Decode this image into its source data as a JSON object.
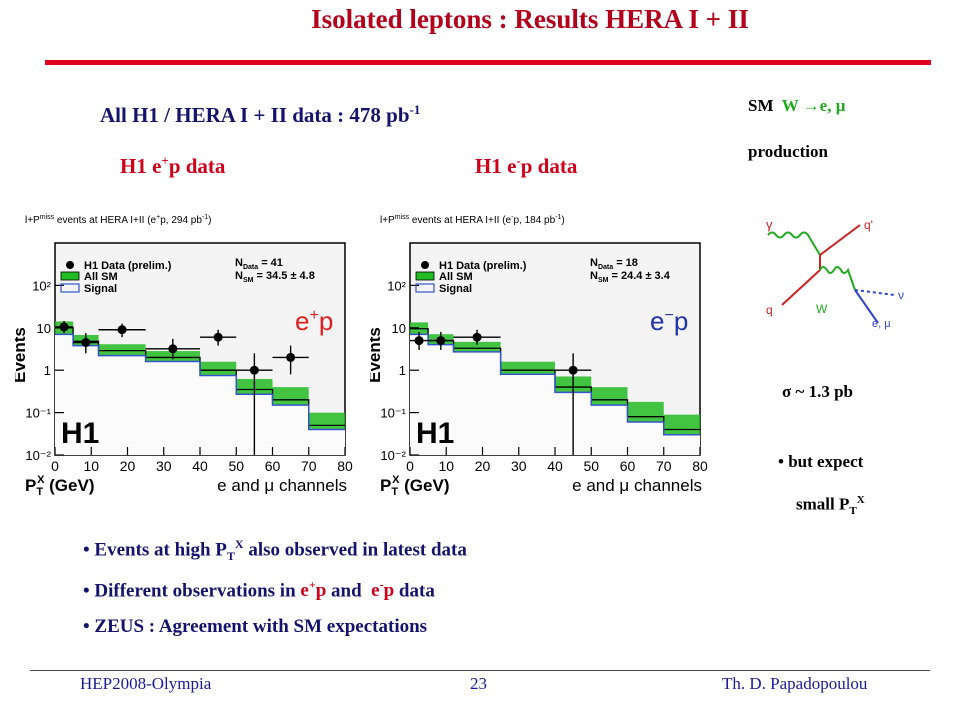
{
  "title": "Isolated leptons : Results  HERA I + II",
  "subtitle": {
    "pre": "All H1 / HERA I + II data : 478 pb",
    "sup": "-1"
  },
  "plot_labels": {
    "left": {
      "a": "H1 e",
      "sup": "+",
      "b": "p data"
    },
    "right": {
      "a": "H1 e",
      "sup": "-",
      "b": "p data"
    }
  },
  "sidebar": {
    "sm": "SM",
    "w": "W ",
    "arrow": "→",
    "decay": "e, μ",
    "production": "production",
    "sigma": "σ ~ 1.3 pb",
    "expect1": "• but expect",
    "expect2a": "small  P",
    "expect2sub": "T",
    "expect2sup": "X"
  },
  "feynman": {
    "gamma": "γ",
    "qprime": "q'",
    "q": "q",
    "w": "W",
    "nu": "ν",
    "lep": "e, μ"
  },
  "bullets": {
    "b1": {
      "a": "Events at high P",
      "sub": "T",
      "sup": "X",
      "b": " also observed in latest data"
    },
    "b2": {
      "a": "Different observations in ",
      "r1a": "e",
      "r1sup": "+",
      "r1b": "p",
      "mid": " and  ",
      "r2a": "e",
      "r2sup": "-",
      "r2b": "p",
      "end": " data"
    },
    "b3": "ZEUS : Agreement with SM expectations"
  },
  "footer": {
    "left": "HEP2008-Olympia",
    "center": "23",
    "right": "Th. D. Papadopoulou"
  },
  "colors": {
    "title": "#b3001b",
    "rule": "#e0001f",
    "text_navy": "#14146e",
    "text_red": "#d0001a",
    "sm_band": "#22bb22",
    "signal": "#3355cc",
    "footer": "#1a1a99"
  },
  "chart_data": [
    {
      "type": "bar",
      "header": "l+P",
      "header_sup": "miss",
      "header_sub": "T",
      "header_rest": " events at HERA I+II (e",
      "header_beam": "+",
      "header_tail": "p, 294 pb",
      "header_lumi": "-1",
      "header_end": ")",
      "ylabel": "Events",
      "xlabel_a": "P",
      "xlabel_sub": "T",
      "xlabel_sup": "X",
      "xlabel_b": " (GeV)",
      "channels": "e and μ channels",
      "experiment": "H1",
      "process": "e",
      "process_sup": "+",
      "process_end": "p",
      "ndata_label": "N",
      "ndata_sub": "Data",
      "ndata_value": " = 41",
      "nsm_label": "N",
      "nsm_sub": "SM",
      "nsm_value": " = 34.5 ± 4.8",
      "legend": [
        "H1 Data (prelim.)",
        "All SM",
        "Signal"
      ],
      "legend_position": "top-left",
      "xlim": [
        0,
        80
      ],
      "ylim": [
        0.01,
        1000
      ],
      "ylog": true,
      "x_ticks": [
        "0",
        "10",
        "20",
        "30",
        "40",
        "50",
        "60",
        "70",
        "80"
      ],
      "y_ticks": [
        "10²",
        "10",
        "1",
        "10⁻¹",
        "10⁻²"
      ],
      "bins": [
        0,
        5,
        12,
        25,
        40,
        50,
        60,
        70,
        80
      ],
      "all_sm": [
        10,
        4.8,
        2.9,
        2.0,
        1.0,
        0.35,
        0.2,
        0.05
      ],
      "all_sm_err": [
        0.15,
        0.15,
        0.15,
        0.15,
        0.2,
        0.25,
        0.3,
        0.3
      ],
      "signal": [
        7,
        3.8,
        2.2,
        1.6,
        0.75,
        0.27,
        0.15,
        0.04
      ],
      "data_points": [
        {
          "x": 2.5,
          "y": 10.5,
          "xerr": 2.5,
          "ylo": 7.5,
          "yhi": 14.5
        },
        {
          "x": 8.5,
          "y": 4.5,
          "xerr": 3.5,
          "ylo": 2.5,
          "yhi": 7.5
        },
        {
          "x": 18.5,
          "y": 9,
          "xerr": 6.5,
          "ylo": 6,
          "yhi": 12.5
        },
        {
          "x": 32.5,
          "y": 3.2,
          "xerr": 7.5,
          "ylo": 1.8,
          "yhi": 5.5
        },
        {
          "x": 45,
          "y": 6,
          "xerr": 5,
          "ylo": 3.8,
          "yhi": 9
        },
        {
          "x": 55,
          "y": 1,
          "xerr": 5,
          "ylo": 0.01,
          "yhi": 2.5
        },
        {
          "x": 65,
          "y": 2,
          "xerr": 5,
          "ylo": 0.8,
          "yhi": 3.8
        }
      ]
    },
    {
      "type": "bar",
      "header": "l+P",
      "header_sup": "miss",
      "header_sub": "T",
      "header_rest": " events at HERA I+II (e",
      "header_beam": "-",
      "header_tail": "p, 184 pb",
      "header_lumi": "-1",
      "header_end": ")",
      "ylabel": "Events",
      "xlabel_a": "P",
      "xlabel_sub": "T",
      "xlabel_sup": "X",
      "xlabel_b": " (GeV)",
      "channels": "e and μ channels",
      "experiment": "H1",
      "process": "e",
      "process_sup": "−",
      "process_end": "p",
      "ndata_label": "N",
      "ndata_sub": "Data",
      "ndata_value": " = 18",
      "nsm_label": "N",
      "nsm_sub": "SM",
      "nsm_value": " = 24.4 ± 3.4",
      "legend": [
        "H1 Data (prelim.)",
        "All SM",
        "Signal"
      ],
      "legend_position": "top-left",
      "xlim": [
        0,
        80
      ],
      "ylim": [
        0.01,
        1000
      ],
      "ylog": true,
      "x_ticks": [
        "0",
        "10",
        "20",
        "30",
        "40",
        "50",
        "60",
        "70",
        "80"
      ],
      "y_ticks": [
        "10²",
        "10",
        "1",
        "10⁻¹",
        "10⁻²"
      ],
      "bins": [
        0,
        5,
        12,
        25,
        40,
        50,
        60,
        70,
        80
      ],
      "all_sm": [
        9.5,
        5,
        3.3,
        1.0,
        0.4,
        0.2,
        0.08,
        0.04
      ],
      "all_sm_err": [
        0.15,
        0.15,
        0.15,
        0.2,
        0.25,
        0.3,
        0.35,
        0.35
      ],
      "signal": [
        7,
        4,
        2.7,
        0.8,
        0.3,
        0.15,
        0.06,
        0.03
      ],
      "data_points": [
        {
          "x": 2.5,
          "y": 5,
          "xerr": 2.5,
          "ylo": 3,
          "yhi": 8
        },
        {
          "x": 8.5,
          "y": 5,
          "xerr": 3.5,
          "ylo": 3,
          "yhi": 8
        },
        {
          "x": 18.5,
          "y": 6,
          "xerr": 6.5,
          "ylo": 4,
          "yhi": 9
        },
        {
          "x": 45,
          "y": 1,
          "xerr": 5,
          "ylo": 0.01,
          "yhi": 2.5
        }
      ]
    }
  ]
}
